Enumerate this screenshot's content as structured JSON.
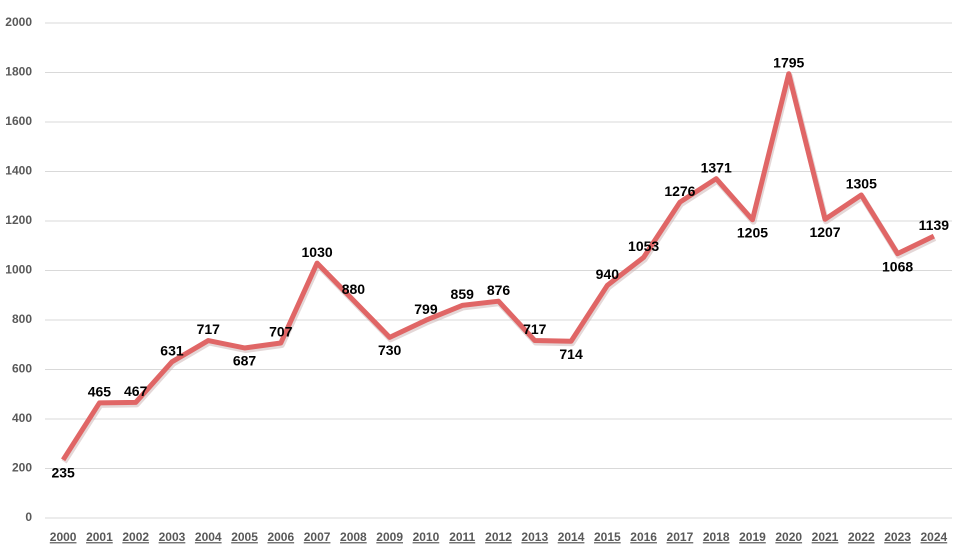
{
  "chart_data": {
    "type": "line",
    "categories": [
      "2000",
      "2001",
      "2002",
      "2003",
      "2004",
      "2005",
      "2006",
      "2007",
      "2008",
      "2009",
      "2010",
      "2011",
      "2012",
      "2013",
      "2014",
      "2015",
      "2016",
      "2017",
      "2018",
      "2019",
      "2020",
      "2021",
      "2022",
      "2023",
      "2024"
    ],
    "values": [
      235,
      465,
      467,
      631,
      717,
      687,
      707,
      1030,
      880,
      730,
      799,
      859,
      876,
      717,
      714,
      940,
      1053,
      1276,
      1371,
      1205,
      1795,
      1207,
      1305,
      1068,
      1139
    ],
    "color": "#e06666",
    "ylim": [
      0,
      2000
    ],
    "yticks": [
      0,
      200,
      400,
      600,
      800,
      1000,
      1200,
      1400,
      1600,
      1800,
      2000
    ],
    "grid": true
  }
}
